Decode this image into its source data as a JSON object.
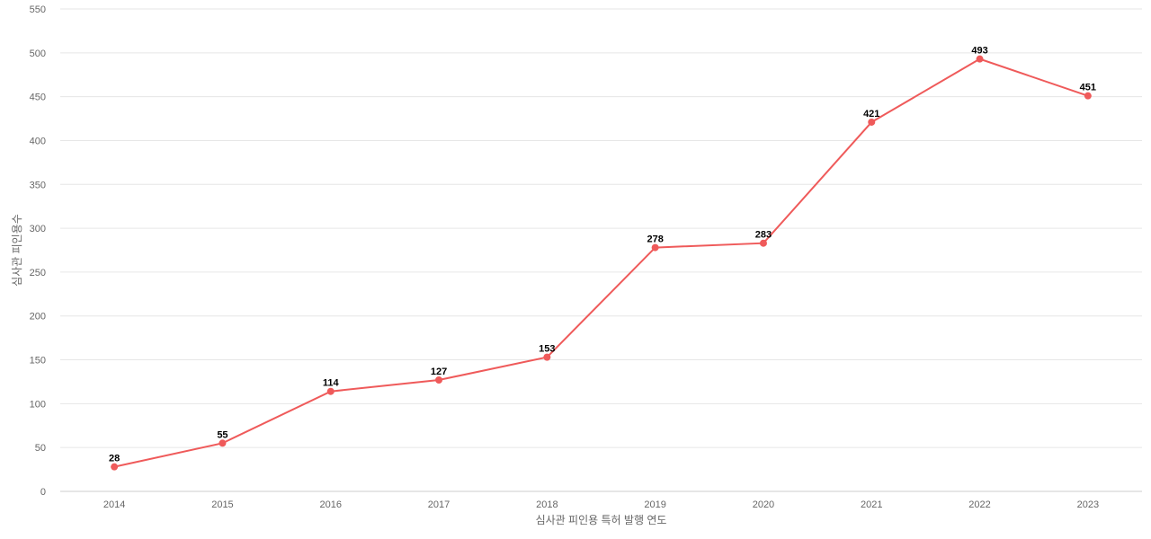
{
  "chart_data": {
    "type": "line",
    "title": "",
    "xlabel": "심사관 피인용 특허 발행 연도",
    "ylabel": "심사관 피인용수",
    "categories": [
      "2014",
      "2015",
      "2016",
      "2017",
      "2018",
      "2019",
      "2020",
      "2021",
      "2022",
      "2023"
    ],
    "series": [
      {
        "values": [
          28,
          55,
          114,
          127,
          153,
          278,
          283,
          421,
          493,
          451
        ],
        "color": "#ef5a5a"
      }
    ],
    "ylim": [
      0,
      550
    ],
    "yticks": [
      0,
      50,
      100,
      150,
      200,
      250,
      300,
      350,
      400,
      450,
      500,
      550
    ],
    "grid": true,
    "legend": "none",
    "data_labels": true
  }
}
